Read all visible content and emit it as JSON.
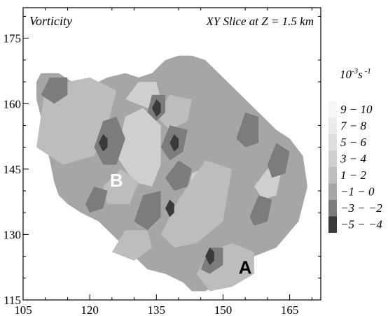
{
  "chart_data": {
    "type": "heatmap",
    "title_left": "Vorticity",
    "title_right": "XY Slice at Z = 1.5 km",
    "xlim": [
      105,
      172
    ],
    "ylim": [
      115,
      182
    ],
    "x_ticks": [
      105,
      120,
      135,
      150,
      165
    ],
    "y_ticks": [
      115,
      130,
      145,
      160,
      175
    ],
    "legend_title_base": "10",
    "legend_title_exp": "-3",
    "legend_title_unit": "s",
    "legend_title_unit_exp": " -1",
    "legend": [
      {
        "label": "9 − 10",
        "color": "#f6f6f6"
      },
      {
        "label": "7 − 8",
        "color": "#ebebeb"
      },
      {
        "label": "5 − 6",
        "color": "#dedede"
      },
      {
        "label": "3 − 4",
        "color": "#cfcfcf"
      },
      {
        "label": "1 − 2",
        "color": "#bdbdbd"
      },
      {
        "label": "−1 − 0",
        "color": "#a6a6a6"
      },
      {
        "label": "−3 − −2",
        "color": "#7c7c7c"
      },
      {
        "label": "−5 − −4",
        "color": "#3a3a3a"
      }
    ],
    "annotations": [
      {
        "text": "A",
        "x": 155,
        "y": 121
      },
      {
        "text": "B",
        "x": 126,
        "y": 141
      }
    ],
    "domain_outline": [
      [
        108,
        165
      ],
      [
        109,
        167
      ],
      [
        113,
        167
      ],
      [
        116,
        165
      ],
      [
        120,
        164
      ],
      [
        124,
        166
      ],
      [
        128,
        167
      ],
      [
        131,
        166
      ],
      [
        134,
        167
      ],
      [
        137,
        170
      ],
      [
        140,
        171
      ],
      [
        143,
        171
      ],
      [
        146,
        170
      ],
      [
        150,
        166
      ],
      [
        154,
        162
      ],
      [
        158,
        158
      ],
      [
        162,
        154
      ],
      [
        165,
        152
      ],
      [
        168,
        148
      ],
      [
        169,
        141
      ],
      [
        167,
        133
      ],
      [
        162,
        127
      ],
      [
        157,
        125
      ],
      [
        152,
        120
      ],
      [
        146,
        117
      ],
      [
        143,
        117
      ],
      [
        141,
        119
      ],
      [
        137,
        121
      ],
      [
        133,
        122
      ],
      [
        129,
        126
      ],
      [
        125,
        130
      ],
      [
        122,
        133
      ],
      [
        118,
        135
      ],
      [
        115,
        137
      ],
      [
        113,
        139
      ],
      [
        112,
        142
      ],
      [
        111,
        147
      ],
      [
        110,
        151
      ],
      [
        109,
        157
      ],
      [
        108,
        161
      ]
    ],
    "features": [
      {
        "value": 9.5,
        "poly": [
          [
            129,
            153
          ],
          [
            131,
            156
          ],
          [
            133,
            154
          ],
          [
            134,
            150
          ],
          [
            133,
            147
          ],
          [
            131,
            148
          ]
        ]
      },
      {
        "value": 7.5,
        "poly": [
          [
            128,
            150
          ],
          [
            130,
            157
          ],
          [
            134,
            156
          ],
          [
            135,
            150
          ],
          [
            134,
            145
          ],
          [
            131,
            145
          ]
        ]
      },
      {
        "value": 3.5,
        "poly": [
          [
            126,
            148
          ],
          [
            128,
            157
          ],
          [
            132,
            159
          ],
          [
            136,
            155
          ],
          [
            136,
            146
          ],
          [
            134,
            141
          ],
          [
            130,
            142
          ]
        ]
      },
      {
        "value": 9.5,
        "poly": [
          [
            150,
            121
          ],
          [
            152,
            124
          ],
          [
            154,
            123
          ],
          [
            153,
            120
          ],
          [
            151,
            119
          ]
        ]
      },
      {
        "value": 5.5,
        "poly": [
          [
            149,
            121
          ],
          [
            150,
            125
          ],
          [
            154,
            125
          ],
          [
            155,
            121
          ],
          [
            152,
            119
          ]
        ]
      },
      {
        "value": 7.5,
        "poly": [
          [
            113,
            154
          ],
          [
            115,
            158
          ],
          [
            118,
            157
          ],
          [
            119,
            153
          ],
          [
            117,
            151
          ],
          [
            114,
            151
          ]
        ]
      },
      {
        "value": 3.5,
        "poly": [
          [
            111,
            155
          ],
          [
            113,
            162
          ],
          [
            118,
            163
          ],
          [
            121,
            158
          ],
          [
            120,
            152
          ],
          [
            116,
            150
          ],
          [
            112,
            151
          ]
        ]
      },
      {
        "value": 5.5,
        "poly": [
          [
            143,
            136
          ],
          [
            144,
            141
          ],
          [
            146,
            143
          ],
          [
            147,
            140
          ],
          [
            146,
            136
          ]
        ]
      },
      {
        "value": 3.5,
        "poly": [
          [
            141,
            134
          ],
          [
            143,
            144
          ],
          [
            147,
            146
          ],
          [
            149,
            141
          ],
          [
            147,
            134
          ]
        ]
      },
      {
        "value": 3.5,
        "poly": [
          [
            128,
            161
          ],
          [
            131,
            165
          ],
          [
            135,
            165
          ],
          [
            136,
            161
          ],
          [
            133,
            159
          ]
        ]
      },
      {
        "value": 3.5,
        "poly": [
          [
            157,
            141
          ],
          [
            160,
            145
          ],
          [
            163,
            144
          ],
          [
            162,
            139
          ],
          [
            159,
            138
          ]
        ]
      },
      {
        "value": 1.5,
        "poly": [
          [
            108,
            150
          ],
          [
            110,
            164
          ],
          [
            120,
            166
          ],
          [
            126,
            163
          ],
          [
            124,
            155
          ],
          [
            121,
            148
          ],
          [
            114,
            146
          ]
        ]
      },
      {
        "value": 1.5,
        "poly": [
          [
            136,
            130
          ],
          [
            140,
            138
          ],
          [
            146,
            147
          ],
          [
            152,
            145
          ],
          [
            150,
            133
          ],
          [
            144,
            128
          ],
          [
            139,
            127
          ]
        ]
      },
      {
        "value": 1.5,
        "poly": [
          [
            144,
            121
          ],
          [
            147,
            126
          ],
          [
            152,
            128
          ],
          [
            157,
            126
          ],
          [
            157,
            121
          ],
          [
            152,
            118
          ],
          [
            147,
            117
          ]
        ]
      },
      {
        "value": 1.5,
        "poly": [
          [
            123,
            141
          ],
          [
            127,
            145
          ],
          [
            131,
            142
          ],
          [
            129,
            137
          ],
          [
            124,
            137
          ]
        ]
      },
      {
        "value": 1.5,
        "poly": [
          [
            125,
            126
          ],
          [
            128,
            131
          ],
          [
            133,
            131
          ],
          [
            134,
            127
          ],
          [
            130,
            124
          ]
        ]
      },
      {
        "value": 1.5,
        "poly": [
          [
            135,
            157
          ],
          [
            138,
            162
          ],
          [
            143,
            161
          ],
          [
            142,
            156
          ],
          [
            138,
            154
          ]
        ]
      },
      {
        "value": -2.5,
        "poly": [
          [
            121,
            150
          ],
          [
            123,
            156
          ],
          [
            126,
            157
          ],
          [
            128,
            152
          ],
          [
            126,
            146
          ],
          [
            123,
            146
          ]
        ]
      },
      {
        "value": -2.5,
        "poly": [
          [
            136,
            150
          ],
          [
            138,
            155
          ],
          [
            142,
            154
          ],
          [
            141,
            149
          ],
          [
            138,
            147
          ]
        ]
      },
      {
        "value": -2.5,
        "poly": [
          [
            133,
            158
          ],
          [
            134,
            162
          ],
          [
            137,
            162
          ],
          [
            137,
            158
          ],
          [
            135,
            156
          ]
        ]
      },
      {
        "value": -2.5,
        "poly": [
          [
            130,
            133
          ],
          [
            132,
            139
          ],
          [
            136,
            140
          ],
          [
            136,
            134
          ],
          [
            133,
            131
          ]
        ]
      },
      {
        "value": -2.5,
        "poly": [
          [
            145,
            122
          ],
          [
            147,
            127
          ],
          [
            150,
            127
          ],
          [
            150,
            123
          ],
          [
            147,
            121
          ]
        ]
      },
      {
        "value": -2.5,
        "poly": [
          [
            153,
            152
          ],
          [
            155,
            158
          ],
          [
            158,
            157
          ],
          [
            158,
            151
          ],
          [
            155,
            150
          ]
        ]
      },
      {
        "value": -2.5,
        "poly": [
          [
            109,
            162
          ],
          [
            111,
            166
          ],
          [
            115,
            166
          ],
          [
            115,
            162
          ],
          [
            112,
            160
          ]
        ]
      },
      {
        "value": -2.5,
        "poly": [
          [
            137,
            143
          ],
          [
            140,
            147
          ],
          [
            143,
            145
          ],
          [
            142,
            141
          ],
          [
            139,
            140
          ]
        ]
      },
      {
        "value": -2.5,
        "poly": [
          [
            160,
            146
          ],
          [
            162,
            151
          ],
          [
            165,
            149
          ],
          [
            164,
            144
          ],
          [
            161,
            143
          ]
        ]
      },
      {
        "value": -2.5,
        "poly": [
          [
            119,
            137
          ],
          [
            121,
            141
          ],
          [
            124,
            140
          ],
          [
            123,
            136
          ],
          [
            120,
            135
          ]
        ]
      },
      {
        "value": -2.5,
        "poly": [
          [
            156,
            134
          ],
          [
            158,
            139
          ],
          [
            161,
            138
          ],
          [
            160,
            133
          ],
          [
            157,
            132
          ]
        ]
      },
      {
        "value": -4.5,
        "poly": [
          [
            122,
            151
          ],
          [
            123,
            153
          ],
          [
            124,
            152
          ],
          [
            124,
            150
          ],
          [
            123,
            149
          ]
        ]
      },
      {
        "value": -4.5,
        "poly": [
          [
            138,
            151
          ],
          [
            139,
            153
          ],
          [
            140,
            152
          ],
          [
            140,
            150
          ],
          [
            139,
            149
          ]
        ]
      },
      {
        "value": -4.5,
        "poly": [
          [
            134,
            159
          ],
          [
            135,
            161
          ],
          [
            136,
            160
          ],
          [
            136,
            158
          ],
          [
            135,
            157
          ]
        ]
      },
      {
        "value": -4.5,
        "poly": [
          [
            146,
            125
          ],
          [
            147,
            127
          ],
          [
            148,
            126
          ],
          [
            148,
            124
          ],
          [
            147,
            123
          ]
        ]
      },
      {
        "value": -4.5,
        "poly": [
          [
            137,
            136
          ],
          [
            138,
            138
          ],
          [
            139,
            137
          ],
          [
            139,
            135
          ],
          [
            138,
            134
          ]
        ]
      }
    ]
  }
}
